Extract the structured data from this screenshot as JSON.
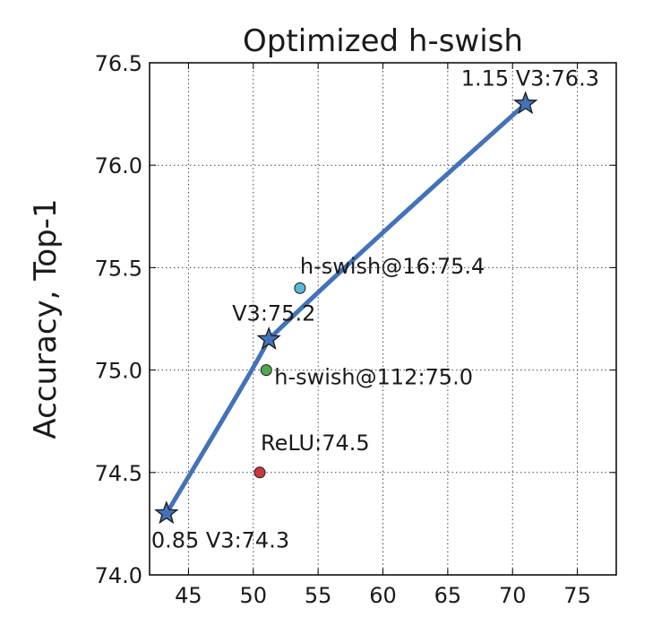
{
  "chart_data": {
    "type": "line",
    "title": "Optimized h-swish",
    "xlabel": "",
    "ylabel": "Accuracy, Top-1",
    "xlim": [
      42,
      78
    ],
    "ylim": [
      74.0,
      76.5
    ],
    "xticks": [
      45,
      50,
      55,
      60,
      65,
      70,
      75
    ],
    "yticks": [
      74.0,
      74.5,
      75.0,
      75.5,
      76.0,
      76.5
    ],
    "xtick_labels": [
      "45",
      "50",
      "55",
      "60",
      "65",
      "70",
      "75"
    ],
    "ytick_labels": [
      "74.0",
      "74.5",
      "75.0",
      "75.5",
      "76.0",
      "76.5"
    ],
    "grid": true,
    "series": [
      {
        "color": "#4472b8",
        "marker": "star",
        "points": [
          {
            "x": 43.3,
            "y": 74.3,
            "label": "0.85 V3:74.3"
          },
          {
            "x": 51.2,
            "y": 75.15,
            "label": "V3:75.2"
          },
          {
            "x": 71.0,
            "y": 76.3,
            "label": "1.15 V3:76.3"
          }
        ]
      }
    ],
    "points": [
      {
        "x": 53.6,
        "y": 75.4,
        "label": "h-swish@16:75.4",
        "color": "#5bb8d4"
      },
      {
        "x": 51.0,
        "y": 75.0,
        "label": "h-swish@112:75.0",
        "color": "#4ea84e"
      },
      {
        "x": 50.5,
        "y": 74.5,
        "label": "ReLU:74.5",
        "color": "#c9383b"
      }
    ]
  }
}
